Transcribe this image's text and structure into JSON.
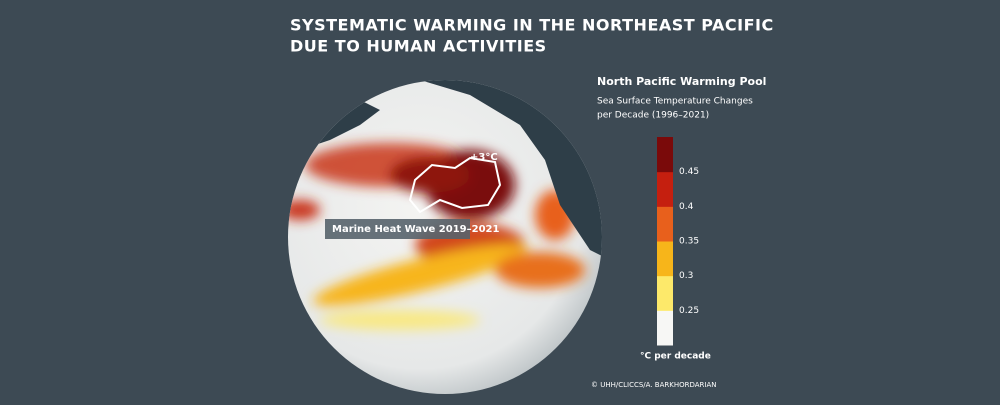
{
  "header": {
    "title_lines": [
      "SYSTEMATIC WARMING IN THE NORTHEAST PACIFIC",
      "DUE TO HUMAN ACTIVITIES"
    ]
  },
  "map": {
    "annotations": {
      "heat_wave": "Marine Heat Wave 2019–2021",
      "peak": "+3°C"
    }
  },
  "legend": {
    "title": "North Pacific Warming Pool",
    "subtitle_lines": [
      "Sea Surface Temperature Changes",
      "per Decade (1996–2021)"
    ],
    "colors": [
      "#f7f7f5",
      "#fde96a",
      "#f7b51a",
      "#e8601c",
      "#c51f0f",
      "#7a0a0a"
    ],
    "ticks": [
      "0.25",
      "0.3",
      "0.35",
      "0.4",
      "0.45"
    ],
    "unit": "°C per decade"
  },
  "credit": "© UHH/CLICCS/A. BARKHORDARIAN"
}
